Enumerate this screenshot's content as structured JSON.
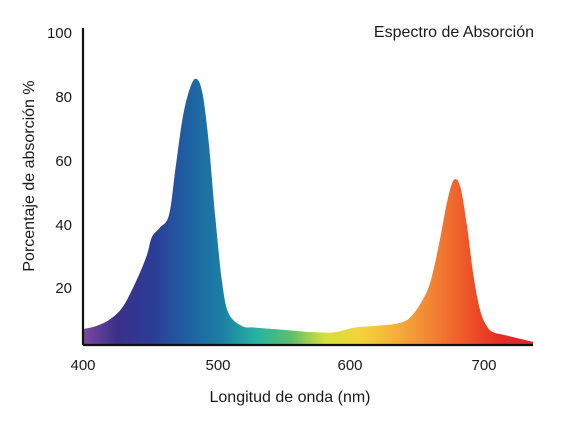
{
  "chart_data": {
    "type": "area",
    "title": "Espectro de Absorción",
    "xlabel": "Longitud de onda (nm)",
    "ylabel": "Porcentaje de absorción %",
    "xlim": [
      400,
      740
    ],
    "ylim": [
      0,
      100
    ],
    "x_ticks": [
      "400",
      "500",
      "600",
      "700"
    ],
    "y_ticks": [
      "20",
      "40",
      "60",
      "80",
      "100"
    ],
    "grid": false,
    "legend": "none",
    "series": [
      {
        "x": [
          400,
          410,
          420,
          430,
          440,
          448,
          452,
          458,
          465,
          470,
          475,
          480,
          485,
          490,
          495,
          500,
          505,
          510,
          520,
          530,
          545,
          560,
          575,
          590,
          605,
          620,
          640,
          650,
          660,
          665,
          670,
          675,
          680,
          685,
          690,
          695,
          700,
          705,
          710,
          720,
          740
        ],
        "y": [
          5,
          6,
          8,
          12,
          20,
          28,
          34,
          37,
          41,
          56,
          71,
          80,
          84,
          80,
          64,
          40,
          20,
          10,
          6,
          5.5,
          5,
          4.5,
          4,
          4,
          5.5,
          6,
          7,
          10,
          17,
          24,
          34,
          45,
          52,
          50,
          38,
          22,
          11,
          6,
          4,
          3,
          1
        ]
      }
    ],
    "gradient_colors": [
      "#7a4a9e",
      "#3b2f8a",
      "#2c3c96",
      "#1f5fa3",
      "#1b7fa4",
      "#25b3a0",
      "#5cbf6b",
      "#d7df3a",
      "#f2d43a",
      "#f4b03b",
      "#f28734",
      "#ee5a2a",
      "#e62e24",
      "#e0242b"
    ]
  }
}
